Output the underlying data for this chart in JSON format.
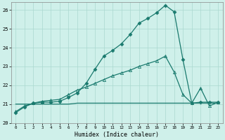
{
  "xlabel": "Humidex (Indice chaleur)",
  "background_color": "#cff0ea",
  "grid_color": "#aad8d0",
  "line_color": "#1a7a6e",
  "xlim": [
    -0.5,
    23.5
  ],
  "ylim": [
    20,
    26.4
  ],
  "yticks": [
    20,
    21,
    22,
    23,
    24,
    25,
    26
  ],
  "xticks": [
    0,
    1,
    2,
    3,
    4,
    5,
    6,
    7,
    8,
    9,
    10,
    11,
    12,
    13,
    14,
    15,
    16,
    17,
    18,
    19,
    20,
    21,
    22,
    23
  ],
  "series1_x": [
    0,
    1,
    2,
    3,
    4,
    5,
    6,
    7,
    8,
    9,
    10,
    11,
    12,
    13,
    14,
    15,
    16,
    17,
    18,
    19,
    20,
    21,
    22,
    23
  ],
  "series1_y": [
    20.55,
    20.85,
    21.05,
    21.1,
    21.1,
    21.15,
    21.35,
    21.6,
    22.1,
    22.85,
    23.55,
    23.85,
    24.2,
    24.7,
    25.3,
    25.55,
    25.85,
    26.25,
    25.9,
    23.35,
    21.05,
    21.1,
    21.1,
    21.1
  ],
  "series2_x": [
    0,
    1,
    2,
    3,
    4,
    5,
    6,
    7,
    8,
    9,
    10,
    11,
    12,
    13,
    14,
    15,
    16,
    17,
    18,
    19,
    20,
    21,
    22,
    23
  ],
  "series2_y": [
    20.6,
    20.9,
    21.05,
    21.15,
    21.2,
    21.25,
    21.5,
    21.75,
    21.9,
    22.1,
    22.3,
    22.5,
    22.65,
    22.8,
    23.0,
    23.15,
    23.3,
    23.55,
    22.7,
    21.5,
    21.05,
    21.85,
    20.9,
    21.1
  ],
  "series3_x": [
    0,
    1,
    2,
    3,
    4,
    5,
    6,
    7,
    8,
    9,
    10,
    11,
    12,
    13,
    14,
    15,
    16,
    17,
    18,
    19,
    20,
    21,
    22,
    23
  ],
  "series3_y": [
    21.0,
    21.0,
    21.0,
    21.0,
    21.0,
    21.0,
    21.0,
    21.05,
    21.05,
    21.05,
    21.05,
    21.05,
    21.05,
    21.05,
    21.05,
    21.05,
    21.05,
    21.05,
    21.05,
    21.05,
    21.05,
    21.05,
    21.05,
    21.05
  ],
  "marker_size": 2.5,
  "linewidth": 0.9
}
